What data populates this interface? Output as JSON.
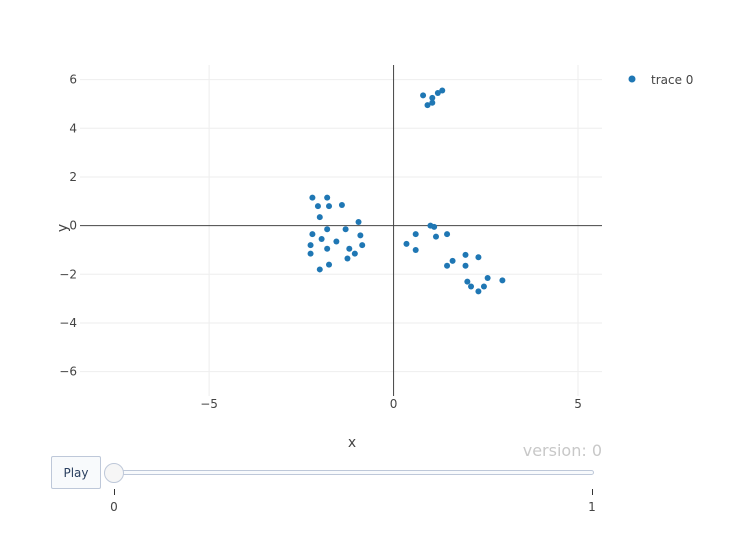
{
  "chart_data": {
    "type": "scatter",
    "xlabel": "x",
    "ylabel": "y",
    "xlim": [
      -8.5,
      5.65
    ],
    "ylim": [
      -7,
      6.6
    ],
    "x_ticks": [
      -5,
      0,
      5
    ],
    "x_tick_labels": [
      "−5",
      "0",
      "5"
    ],
    "y_ticks": [
      -6,
      -4,
      -2,
      0,
      2,
      4,
      6
    ],
    "y_tick_labels": [
      "−6",
      "−4",
      "−2",
      "0",
      "2",
      "4",
      "6"
    ],
    "grid": true,
    "legend": "top-right",
    "series": [
      {
        "name": "trace 0",
        "color": "#1f77b4",
        "x": [
          0.8,
          1.05,
          1.2,
          1.32,
          0.92,
          1.05,
          -2.2,
          -1.8,
          -2.05,
          -1.75,
          -1.4,
          -2.0,
          -0.95,
          -2.2,
          -1.8,
          -1.3,
          -2.25,
          -1.95,
          -1.55,
          -0.9,
          -1.2,
          -0.85,
          -1.8,
          -2.25,
          -1.05,
          -1.25,
          -1.75,
          -2.0,
          1.0,
          1.1,
          1.45,
          1.15,
          0.6,
          0.35,
          0.6,
          1.6,
          1.45,
          1.95,
          2.3,
          1.95,
          2.0,
          2.1,
          2.55,
          2.95,
          2.45,
          2.3
        ],
        "y": [
          5.35,
          5.25,
          5.45,
          5.55,
          4.95,
          5.05,
          1.15,
          1.15,
          0.8,
          0.8,
          0.85,
          0.35,
          0.15,
          -0.35,
          -0.15,
          -0.15,
          -0.8,
          -0.55,
          -0.65,
          -0.4,
          -0.95,
          -0.8,
          -0.95,
          -1.15,
          -1.15,
          -1.35,
          -1.6,
          -1.8,
          0.0,
          -0.05,
          -0.35,
          -0.45,
          -0.35,
          -0.75,
          -1.0,
          -1.45,
          -1.65,
          -1.2,
          -1.3,
          -1.65,
          -2.3,
          -2.5,
          -2.15,
          -2.25,
          -2.5,
          -2.7
        ]
      }
    ],
    "version_label": "version: 0"
  },
  "controls": {
    "play_label": "Play",
    "slider_min_label": "0",
    "slider_max_label": "1",
    "slider_value": 0
  }
}
